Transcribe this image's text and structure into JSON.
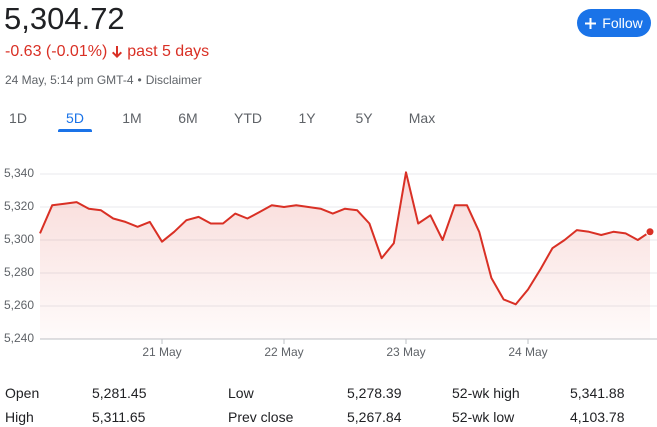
{
  "header": {
    "price": "5,304.72",
    "change": "-0.63 (-0.01%)",
    "period": "past 5 days",
    "timestamp": "24 May, 5:14 pm GMT-4",
    "separator": "•",
    "disclaimer": "Disclaimer",
    "follow": "Follow"
  },
  "tabs": [
    "1D",
    "5D",
    "1M",
    "6M",
    "YTD",
    "1Y",
    "5Y",
    "Max"
  ],
  "active_tab": 1,
  "chart_data": {
    "type": "line",
    "color": "#d93025",
    "categories": [
      null,
      null,
      null,
      null,
      null,
      null,
      null,
      null,
      null,
      null,
      "21 May",
      null,
      null,
      null,
      null,
      null,
      null,
      null,
      null,
      null,
      "22 May",
      null,
      null,
      null,
      null,
      null,
      null,
      null,
      null,
      null,
      "23 May",
      null,
      null,
      null,
      null,
      null,
      null,
      null,
      null,
      null,
      "24 May",
      null,
      null,
      null,
      null,
      null,
      null,
      null,
      null,
      null,
      null
    ],
    "values": [
      5304,
      5321,
      5322,
      5323,
      5319,
      5318,
      5313,
      5311,
      5308,
      5311,
      5299,
      5305,
      5312,
      5314,
      5310,
      5310,
      5316,
      5313,
      5317,
      5321,
      5320,
      5321,
      5320,
      5319,
      5316,
      5319,
      5318,
      5310,
      5289,
      5298,
      5341,
      5310,
      5315,
      5300,
      5321,
      5321,
      5305,
      5277,
      5264,
      5261,
      5270,
      5282,
      5295,
      5300,
      5306,
      5305,
      5303,
      5305,
      5304,
      5300,
      5305
    ],
    "ylim": [
      5240,
      5340
    ],
    "yticks": [
      {
        "value": 5240,
        "label": "5,240"
      },
      {
        "value": 5260,
        "label": "5,260"
      },
      {
        "value": 5280,
        "label": "5,280"
      },
      {
        "value": 5300,
        "label": "5,300"
      },
      {
        "value": 5320,
        "label": "5,320"
      },
      {
        "value": 5340,
        "label": "5,340"
      }
    ],
    "grid": true
  },
  "stats": {
    "rows": [
      [
        "Open",
        "5,281.45",
        "Low",
        "5,278.39",
        "52-wk high",
        "5,341.88"
      ],
      [
        "High",
        "5,311.65",
        "Prev close",
        "5,267.84",
        "52-wk low",
        "4,103.78"
      ]
    ]
  }
}
